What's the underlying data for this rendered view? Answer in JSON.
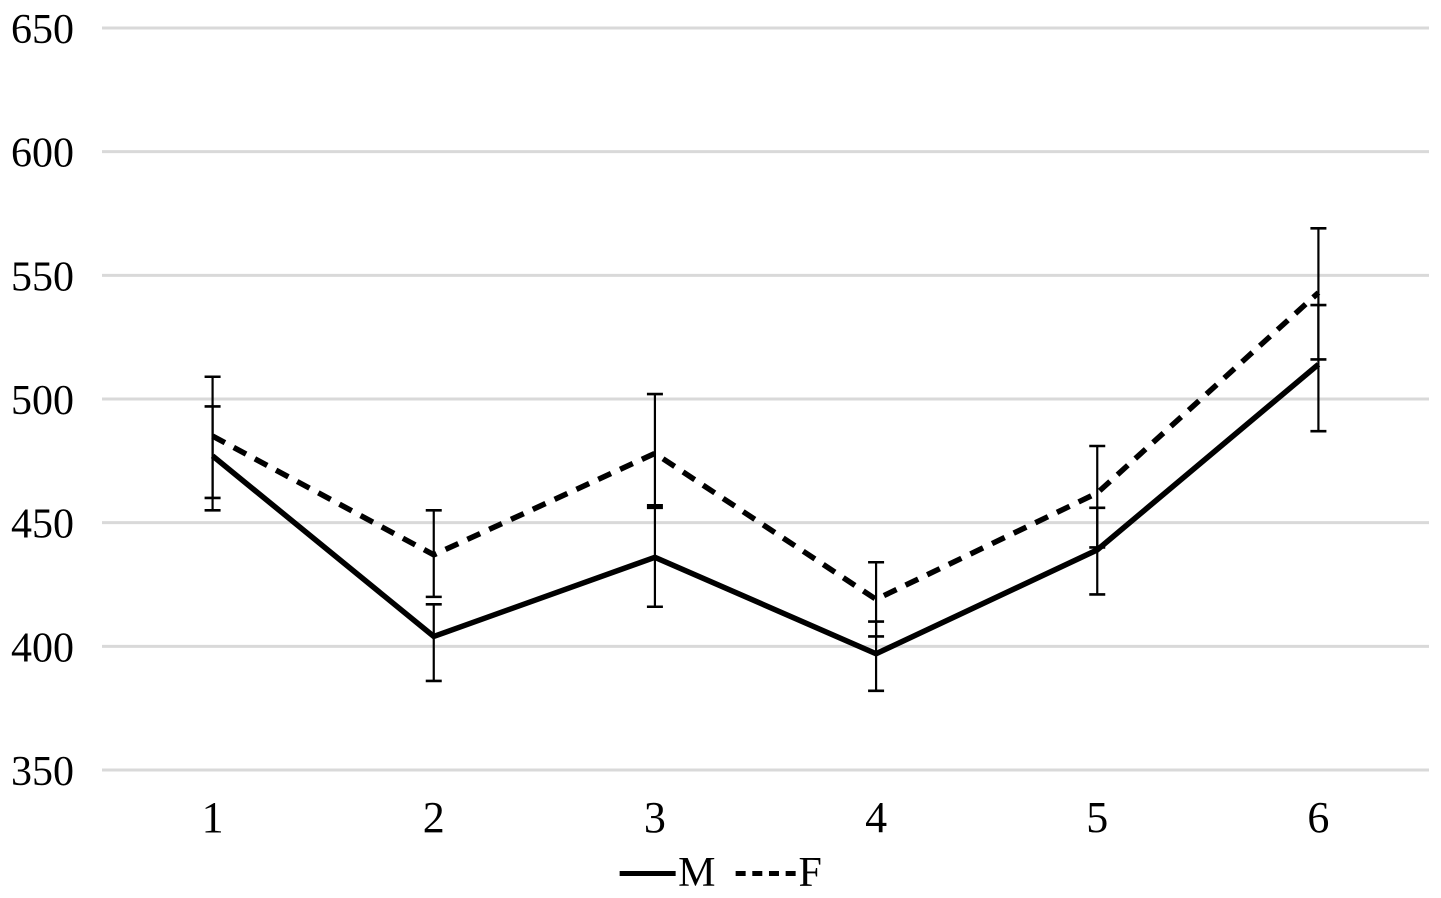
{
  "figure": {
    "background_color": "#ffffff",
    "text_color": "#000000",
    "gridline_color": "#d9d9d9",
    "series_color": "#000000"
  },
  "chart_data": {
    "type": "line",
    "title": "",
    "xlabel": "",
    "ylabel": "",
    "categories": [
      "1",
      "2",
      "3",
      "4",
      "5",
      "6"
    ],
    "series": [
      {
        "name": "M",
        "line_style": "solid",
        "values": [
          477,
          404,
          436,
          397,
          439,
          514
        ],
        "error_low": [
          455,
          386,
          416,
          382,
          421,
          487
        ],
        "error_high": [
          497,
          417,
          457,
          410,
          456,
          538
        ]
      },
      {
        "name": "F",
        "line_style": "dashed",
        "values": [
          485,
          437,
          478,
          419,
          462,
          543
        ],
        "error_low": [
          460,
          420,
          456,
          404,
          440,
          516
        ],
        "error_high": [
          509,
          455,
          502,
          434,
          481,
          569
        ]
      }
    ],
    "ylim": [
      350,
      650
    ],
    "ytick_step": 50,
    "yticks": [
      650,
      600,
      550,
      500,
      450,
      400,
      350
    ],
    "grid": "horizontal-only",
    "error_bars": true,
    "legend_position": "bottom-center"
  },
  "legend": {
    "items": [
      {
        "label": "M",
        "line": "solid"
      },
      {
        "label": "F",
        "line": "dashed"
      }
    ]
  }
}
